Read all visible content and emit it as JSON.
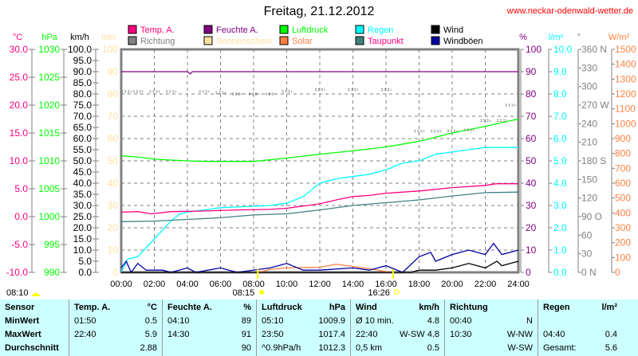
{
  "title": "Freitag, 21.12.2012",
  "site": "www.neckar-odenwald-wetter.de",
  "sun": {
    "duration": "08:10",
    "sunrise": "08:15",
    "sunset": "16:26"
  },
  "colors": {
    "temp": "#ff0080",
    "humidity": "#800080",
    "pressure": "#00ff00",
    "rain": "#00ffff",
    "wind": "#000000",
    "direction": "#808080",
    "sunshine": "#ffe0a0",
    "solar": "#ff8040",
    "dewpoint": "#408080",
    "gust": "#0000a0"
  },
  "chart_data": {
    "type": "line",
    "title": "Freitag, 21.12.2012",
    "xlabel": "",
    "x_ticks": [
      "00:00",
      "02:00",
      "04:00",
      "06:00",
      "08:00",
      "10:00",
      "12:00",
      "14:00",
      "16:00",
      "18:00",
      "20:00",
      "22:00",
      "24:00"
    ],
    "xlim": [
      0,
      24
    ],
    "legend": [
      {
        "key": "temp",
        "label": "Temp. A."
      },
      {
        "key": "humidity",
        "label": "Feuchte A."
      },
      {
        "key": "pressure",
        "label": "Luftdruck"
      },
      {
        "key": "rain",
        "label": "Regen"
      },
      {
        "key": "wind",
        "label": "Wind"
      },
      {
        "key": "direction",
        "label": "Richtung"
      },
      {
        "key": "sunshine",
        "label": "Sonnenschein"
      },
      {
        "key": "solar",
        "label": "Solar"
      },
      {
        "key": "dewpoint",
        "label": "Taupunkt"
      },
      {
        "key": "gust",
        "label": "Windböen"
      }
    ],
    "axes": {
      "temp": {
        "unit": "°C",
        "range": [
          -10,
          30
        ],
        "ticks": [
          "30.0",
          "25.0",
          "20.0",
          "15.0",
          "10.0",
          "5.0",
          "0.0",
          "-5.0",
          "-10.0"
        ]
      },
      "pressure": {
        "unit": "hPa",
        "range": [
          990,
          1030
        ],
        "ticks": [
          "1030",
          "1025",
          "1020",
          "1015",
          "1010",
          "1005",
          "1000",
          "995",
          "990"
        ]
      },
      "wind": {
        "unit": "km/h",
        "range": [
          0,
          100
        ],
        "ticks": [
          "100.0",
          "95.0",
          "90.0",
          "85.0",
          "80.0",
          "75.0",
          "70.0",
          "65.0",
          "60.0",
          "55.0",
          "50.0",
          "45.0",
          "40.0",
          "35.0",
          "30.0",
          "25.0",
          "20.0",
          "15.0",
          "10.0",
          "5.0",
          "0.0"
        ]
      },
      "sunshine": {
        "unit": "min",
        "range": [
          0,
          100
        ],
        "ticks": [
          "100",
          "90",
          "80",
          "70",
          "60",
          "50",
          "40",
          "30",
          "20",
          "10",
          "0"
        ]
      },
      "humidity": {
        "unit": "%",
        "range": [
          0,
          100
        ],
        "ticks": [
          "100",
          "90",
          "80",
          "70",
          "60",
          "50",
          "40",
          "30",
          "20",
          "10",
          "0"
        ]
      },
      "rain": {
        "unit": "l/m²",
        "range": [
          0,
          10
        ],
        "ticks": [
          "10.0",
          "9.0",
          "8.0",
          "7.0",
          "6.0",
          "5.0",
          "4.0",
          "3.0",
          "2.0",
          "1.0",
          "0.0"
        ]
      },
      "direction": {
        "unit": "°",
        "range": [
          0,
          360
        ],
        "ticks": [
          "360 N",
          "330",
          "300",
          "270 W",
          "240",
          "210",
          "180 S",
          "150",
          "120",
          "90  O",
          "60",
          "30",
          "0   N"
        ]
      },
      "solar": {
        "unit": "W/m²",
        "range": [
          0,
          1500
        ],
        "ticks": [
          "1500",
          "1400",
          "1300",
          "1200",
          "1100",
          "1000",
          "900",
          "800",
          "700",
          "600",
          "500",
          "400",
          "300",
          "200",
          "100",
          "0"
        ]
      }
    },
    "series": [
      {
        "key": "humidity",
        "axis": "humidity",
        "points": [
          [
            0,
            90
          ],
          [
            4,
            90
          ],
          [
            4.17,
            89
          ],
          [
            4.3,
            90
          ],
          [
            24,
            90
          ]
        ]
      },
      {
        "key": "pressure",
        "axis": "pressure",
        "points": [
          [
            0,
            1010.9
          ],
          [
            1,
            1010.7
          ],
          [
            2,
            1010.3
          ],
          [
            4,
            1010.0
          ],
          [
            5.17,
            1009.9
          ],
          [
            8,
            1009.9
          ],
          [
            10,
            1010.5
          ],
          [
            12,
            1011.2
          ],
          [
            14,
            1011.8
          ],
          [
            16,
            1012.5
          ],
          [
            18,
            1013.5
          ],
          [
            20,
            1015.0
          ],
          [
            22,
            1016.2
          ],
          [
            23.83,
            1017.4
          ],
          [
            24,
            1017.4
          ]
        ]
      },
      {
        "key": "rain",
        "axis": "rain",
        "points": [
          [
            0,
            0
          ],
          [
            0.4,
            0.6
          ],
          [
            1,
            0.7
          ],
          [
            2,
            1.5
          ],
          [
            3,
            2.3
          ],
          [
            3.5,
            2.6
          ],
          [
            4,
            2.7
          ],
          [
            5,
            2.8
          ],
          [
            6,
            2.9
          ],
          [
            9,
            3.0
          ],
          [
            10,
            3.1
          ],
          [
            11,
            3.4
          ],
          [
            12,
            4.0
          ],
          [
            13,
            4.2
          ],
          [
            15,
            4.4
          ],
          [
            16,
            4.6
          ],
          [
            17,
            4.9
          ],
          [
            18,
            5.0
          ],
          [
            19,
            5.3
          ],
          [
            21,
            5.5
          ],
          [
            22,
            5.6
          ],
          [
            24,
            5.6
          ]
        ]
      },
      {
        "key": "temp",
        "axis": "temp",
        "points": [
          [
            0,
            0.8
          ],
          [
            1,
            0.9
          ],
          [
            1.83,
            0.5
          ],
          [
            3,
            0.9
          ],
          [
            5,
            1.0
          ],
          [
            7,
            1.2
          ],
          [
            9,
            1.3
          ],
          [
            10,
            1.5
          ],
          [
            12,
            2.3
          ],
          [
            13,
            3.0
          ],
          [
            14,
            3.6
          ],
          [
            15,
            3.8
          ],
          [
            16,
            4.2
          ],
          [
            18,
            4.6
          ],
          [
            20,
            5.2
          ],
          [
            22,
            5.6
          ],
          [
            22.67,
            5.9
          ],
          [
            24,
            5.9
          ]
        ]
      },
      {
        "key": "dewpoint",
        "axis": "temp",
        "points": [
          [
            0,
            -0.9
          ],
          [
            2,
            -0.8
          ],
          [
            4,
            -0.5
          ],
          [
            6,
            -0.2
          ],
          [
            8,
            0.3
          ],
          [
            10,
            0.5
          ],
          [
            12,
            1.2
          ],
          [
            14,
            2.0
          ],
          [
            16,
            2.5
          ],
          [
            18,
            3.0
          ],
          [
            20,
            3.7
          ],
          [
            22,
            4.3
          ],
          [
            24,
            4.4
          ]
        ]
      },
      {
        "key": "solar",
        "axis": "solar",
        "points": [
          [
            8.3,
            0
          ],
          [
            9,
            20
          ],
          [
            10,
            30
          ],
          [
            12,
            35
          ],
          [
            13,
            55
          ],
          [
            14,
            40
          ],
          [
            15,
            25
          ],
          [
            16,
            5
          ],
          [
            16.4,
            0
          ]
        ]
      },
      {
        "key": "gust",
        "axis": "wind",
        "points": [
          [
            0,
            2
          ],
          [
            0.3,
            5
          ],
          [
            0.6,
            0
          ],
          [
            1,
            4
          ],
          [
            1.5,
            1
          ],
          [
            2.5,
            1
          ],
          [
            3,
            0
          ],
          [
            4,
            2
          ],
          [
            4.5,
            0
          ],
          [
            6,
            2
          ],
          [
            7,
            0
          ],
          [
            9,
            2
          ],
          [
            10,
            4
          ],
          [
            11,
            1
          ],
          [
            12,
            1
          ],
          [
            14,
            2
          ],
          [
            15,
            1
          ],
          [
            16,
            3
          ],
          [
            17,
            0
          ],
          [
            18,
            7
          ],
          [
            18.7,
            9
          ],
          [
            19,
            5
          ],
          [
            20,
            8
          ],
          [
            21,
            10
          ],
          [
            22,
            8
          ],
          [
            22.5,
            13
          ],
          [
            23,
            8
          ],
          [
            24,
            10
          ]
        ]
      },
      {
        "key": "wind",
        "axis": "wind",
        "points": [
          [
            0,
            0
          ],
          [
            17.5,
            0
          ],
          [
            18,
            1
          ],
          [
            19,
            1
          ],
          [
            20,
            2
          ],
          [
            21,
            4
          ],
          [
            22,
            2
          ],
          [
            22.7,
            5
          ],
          [
            23,
            3
          ],
          [
            24,
            5
          ]
        ]
      }
    ],
    "direction_dots": [
      [
        0.3,
        292
      ],
      [
        1,
        292
      ],
      [
        2,
        292
      ],
      [
        3,
        292
      ],
      [
        5,
        292
      ],
      [
        6,
        290
      ],
      [
        7,
        288
      ],
      [
        8,
        288
      ],
      [
        9,
        288
      ],
      [
        10,
        292
      ],
      [
        12,
        295
      ],
      [
        14,
        295
      ],
      [
        16,
        295
      ],
      [
        18,
        228
      ],
      [
        19,
        228
      ],
      [
        20,
        228
      ],
      [
        21,
        230
      ],
      [
        22,
        245
      ],
      [
        23,
        245
      ],
      [
        23.5,
        270
      ]
    ]
  },
  "legend_labels": [
    "Temp. A.",
    "Feuchte A.",
    "Luftdruck",
    "Regen",
    "Wind",
    "Richtung",
    "Sonnenschein",
    "Solar",
    "Taupunkt",
    "Windböen"
  ],
  "stats": {
    "sensor": {
      "h": "Sensor",
      "rows": [
        "MinWert",
        "MaxWert",
        "Durchschnitt"
      ]
    },
    "temp": {
      "h": "Temp. A.",
      "u": "°C",
      "rows": [
        [
          "01:50",
          "0.5"
        ],
        [
          "22:40",
          "5.9"
        ],
        [
          "",
          "2.88"
        ]
      ]
    },
    "hum": {
      "h": "Feuchte A.",
      "u": "%",
      "rows": [
        [
          "04:10",
          "89"
        ],
        [
          "14:30",
          "91"
        ],
        [
          "",
          "90"
        ]
      ]
    },
    "press": {
      "h": "Luftdruck",
      "u": "hPa",
      "rows": [
        [
          "05:10",
          "1009.9"
        ],
        [
          "23:50",
          "1017.4"
        ],
        [
          "^0.9hPa/h",
          "1012.3"
        ]
      ]
    },
    "wind": {
      "h": "Wind",
      "u": "km/h",
      "rows": [
        [
          "Ø 10 min.",
          "4.8"
        ],
        [
          "22:40",
          "W-SW 4.8"
        ],
        [
          "0,5 km",
          "0.5"
        ]
      ]
    },
    "dir": {
      "h": "Richtung",
      "u": "",
      "rows": [
        [
          "00:40",
          "N"
        ],
        [
          "10:30",
          "W-NW"
        ],
        [
          "",
          "W-SW"
        ]
      ]
    },
    "rain": {
      "h": "Regen",
      "u": "l/m²",
      "rows": [
        [
          "",
          ""
        ],
        [
          "04:40",
          "0.4"
        ],
        [
          "Gesamt:",
          "5.6"
        ]
      ]
    }
  }
}
